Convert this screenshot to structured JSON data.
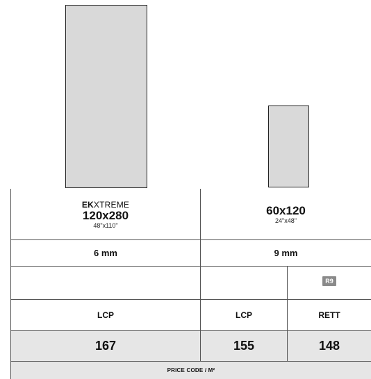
{
  "tiles": {
    "large": {
      "brand_bold": "EK",
      "brand_rest": "XTREME",
      "size": "120x280",
      "size_inch": "48\"x110\""
    },
    "small": {
      "size": "60x120",
      "size_inch": "24\"x48\""
    }
  },
  "thickness": {
    "large": "6 mm",
    "small": "9 mm"
  },
  "finish_badge": "R9",
  "finishes": {
    "col1": "LCP",
    "col2": "LCP",
    "col3": "RETT"
  },
  "prices": {
    "col1": "167",
    "col2": "155",
    "col3": "148"
  },
  "price_code_label": "PRICE CODE / M²"
}
